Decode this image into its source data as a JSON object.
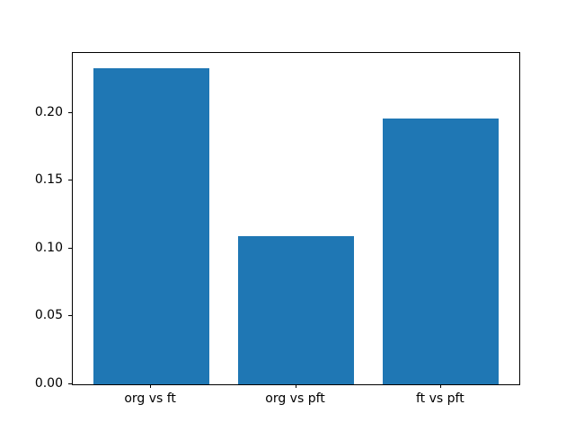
{
  "chart_data": {
    "type": "bar",
    "title": "",
    "xlabel": "",
    "ylabel": "",
    "categories": [
      "org vs ft",
      "org vs pft",
      "ft vs pft"
    ],
    "values": [
      0.233,
      0.109,
      0.196
    ],
    "bar_color": "#1f77b4",
    "bar_width": 0.8,
    "xlim": [
      -0.54,
      2.54
    ],
    "ylim": [
      0,
      0.2443
    ],
    "yticks": [
      0.0,
      0.05,
      0.1,
      0.15,
      0.2
    ],
    "ytick_labels": [
      "0.00",
      "0.05",
      "0.10",
      "0.15",
      "0.20"
    ],
    "grid": false,
    "legend": null,
    "background_color": "#ffffff",
    "spine_color": "#000000"
  }
}
